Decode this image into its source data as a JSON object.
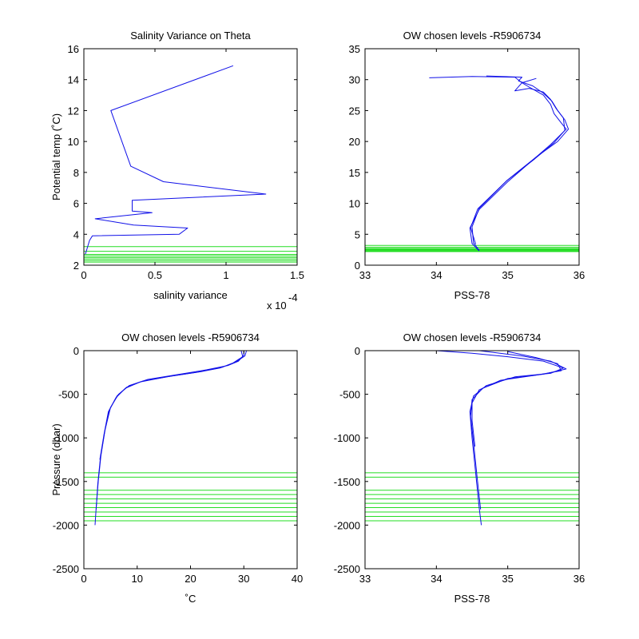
{
  "colors": {
    "profile": "#1010e8",
    "levels": "#22dd22",
    "axes": "#000000",
    "background": "#ffffff"
  },
  "chart_data": [
    {
      "id": "p1",
      "type": "line",
      "title": "Salinity Variance on Theta",
      "xlabel": "salinity variance",
      "ylabel": "Potential temp (˚C)",
      "exponent_label": "x 10",
      "exponent_power": "-4",
      "xlim": [
        0,
        1.5
      ],
      "ylim": [
        2,
        16
      ],
      "xticks": [
        0,
        0.5,
        1,
        1.5
      ],
      "xticklabels": [
        "0",
        "0.5",
        "1",
        "1.5"
      ],
      "yticks": [
        2,
        4,
        6,
        8,
        10,
        12,
        14,
        16
      ],
      "yticklabels": [
        "2",
        "4",
        "6",
        "8",
        "10",
        "12",
        "14",
        "16"
      ],
      "series": [
        {
          "x": [
            1.05,
            0.19,
            0.33,
            0.56,
            1.28,
            0.34,
            0.34,
            0.48,
            0.08,
            0.35,
            0.73,
            0.67,
            0.06,
            0.04,
            0.02,
            0.01
          ],
          "y": [
            14.9,
            12.0,
            8.4,
            7.4,
            6.6,
            6.2,
            5.5,
            5.4,
            5.0,
            4.6,
            4.4,
            4.0,
            3.9,
            3.6,
            3.0,
            2.7
          ]
        }
      ],
      "hlines": [
        3.2,
        2.9,
        2.7,
        2.6,
        2.5,
        2.4,
        2.3,
        2.2
      ]
    },
    {
      "id": "p2",
      "type": "line",
      "title": "OW chosen levels -R5906734",
      "xlabel": "PSS-78",
      "ylabel": "",
      "xlim": [
        33,
        36
      ],
      "ylim": [
        0,
        35
      ],
      "xticks": [
        33,
        34,
        35,
        36
      ],
      "xticklabels": [
        "33",
        "34",
        "35",
        "36"
      ],
      "yticks": [
        0,
        5,
        10,
        15,
        20,
        25,
        30,
        35
      ],
      "yticklabels": [
        "0",
        "5",
        "10",
        "15",
        "20",
        "25",
        "30",
        "35"
      ],
      "series": [
        {
          "x": [
            33.9,
            34.5,
            35.1,
            35.2,
            35.3,
            35.5,
            35.6,
            35.65,
            35.75,
            35.82,
            35.6,
            35.35,
            35.0,
            34.6,
            34.47,
            34.5,
            34.6
          ],
          "y": [
            30.3,
            30.5,
            30.4,
            29.5,
            28.8,
            27.5,
            26.0,
            24.5,
            23.0,
            22.0,
            19.5,
            17.0,
            13.5,
            9.0,
            6.0,
            3.5,
            2.3
          ]
        },
        {
          "x": [
            34.7,
            35.2,
            35.15,
            35.35,
            35.5,
            35.62,
            35.7,
            35.8,
            35.85,
            35.7,
            35.4,
            35.0,
            34.6,
            34.5,
            34.52,
            34.6
          ],
          "y": [
            30.6,
            30.4,
            29.8,
            29.0,
            27.8,
            26.5,
            25.0,
            23.5,
            22.0,
            20.0,
            17.5,
            13.8,
            9.2,
            6.2,
            3.6,
            2.4
          ]
        },
        {
          "x": [
            35.4,
            35.2,
            35.1,
            35.3,
            35.5,
            35.6,
            35.68,
            35.78,
            35.8,
            35.65,
            35.38,
            34.98,
            34.58,
            34.48,
            34.55
          ],
          "y": [
            30.2,
            29.5,
            28.2,
            28.6,
            28.0,
            26.8,
            25.3,
            23.8,
            21.8,
            19.8,
            17.2,
            13.6,
            9.1,
            6.1,
            3.4
          ]
        }
      ],
      "hlines": [
        3.2,
        2.9,
        2.7,
        2.6,
        2.5,
        2.4,
        2.3,
        2.2
      ]
    },
    {
      "id": "p3",
      "type": "line",
      "title": "OW chosen levels -R5906734",
      "xlabel": "˚C",
      "ylabel": "Pressure (dbar)",
      "xlim": [
        0,
        40
      ],
      "ylim": [
        -2500,
        0
      ],
      "xticks": [
        0,
        10,
        20,
        30,
        40
      ],
      "xticklabels": [
        "0",
        "10",
        "20",
        "30",
        "40"
      ],
      "yticks": [
        -2500,
        -2000,
        -1500,
        -1000,
        -500,
        0
      ],
      "yticklabels": [
        "-2500",
        "-2000",
        "-1500",
        "-1000",
        "-500",
        "0"
      ],
      "series": [
        {
          "x": [
            30.0,
            30.0,
            29.0,
            27.0,
            23.0,
            18.0,
            12.0,
            8.5,
            6.5,
            5.0,
            4.0,
            3.2,
            2.7,
            2.3,
            2.1
          ],
          "y": [
            0,
            -50,
            -120,
            -170,
            -220,
            -270,
            -330,
            -400,
            -500,
            -650,
            -900,
            -1200,
            -1500,
            -1800,
            -2000
          ]
        },
        {
          "x": [
            30.5,
            30.2,
            28.5,
            26.0,
            22.0,
            16.5,
            11.0,
            8.0,
            6.2,
            4.8,
            3.9,
            3.1,
            2.6,
            2.3
          ],
          "y": [
            0,
            -60,
            -130,
            -190,
            -240,
            -290,
            -350,
            -420,
            -520,
            -680,
            -930,
            -1230,
            -1530,
            -1820
          ]
        },
        {
          "x": [
            29.5,
            29.8,
            28.0,
            25.5,
            21.0,
            15.5,
            10.5,
            7.8,
            6.0,
            4.6,
            3.8,
            3.0
          ],
          "y": [
            0,
            -70,
            -140,
            -200,
            -250,
            -300,
            -360,
            -430,
            -540,
            -700,
            -950,
            -1250
          ]
        }
      ],
      "hlines": [
        -1400,
        -1450,
        -1600,
        -1650,
        -1700,
        -1750,
        -1800,
        -1850,
        -1900,
        -1950
      ]
    },
    {
      "id": "p4",
      "type": "line",
      "title": "OW chosen levels -R5906734",
      "xlabel": "PSS-78",
      "ylabel": "",
      "xlim": [
        33,
        36
      ],
      "ylim": [
        -2500,
        0
      ],
      "xticks": [
        33,
        34,
        35,
        36
      ],
      "xticklabels": [
        "33",
        "34",
        "35",
        "36"
      ],
      "yticks": [
        -2500,
        -2000,
        -1500,
        -1000,
        -500,
        0
      ],
      "yticklabels": [
        "-2500",
        "-2000",
        "-1500",
        "-1000",
        "-500",
        "0"
      ],
      "series": [
        {
          "x": [
            34.0,
            34.5,
            35.0,
            35.5,
            35.78,
            35.6,
            35.1,
            34.7,
            34.52,
            34.47,
            34.5,
            34.55,
            34.6,
            34.63
          ],
          "y": [
            0,
            -30,
            -70,
            -120,
            -200,
            -260,
            -300,
            -400,
            -520,
            -700,
            -1000,
            -1400,
            -1800,
            -2000
          ]
        },
        {
          "x": [
            34.6,
            35.2,
            35.6,
            35.82,
            35.5,
            35.0,
            34.65,
            34.5,
            34.48,
            34.52,
            34.57,
            34.62
          ],
          "y": [
            0,
            -60,
            -120,
            -210,
            -270,
            -320,
            -430,
            -560,
            -750,
            -1050,
            -1450,
            -1820
          ]
        },
        {
          "x": [
            35.0,
            35.4,
            35.7,
            35.75,
            35.4,
            34.9,
            34.6,
            34.5,
            34.5,
            34.54
          ],
          "y": [
            -10,
            -80,
            -150,
            -230,
            -280,
            -340,
            -450,
            -600,
            -800,
            -1100
          ]
        }
      ],
      "hlines": [
        -1400,
        -1450,
        -1600,
        -1650,
        -1700,
        -1750,
        -1800,
        -1850,
        -1900,
        -1950
      ]
    }
  ]
}
